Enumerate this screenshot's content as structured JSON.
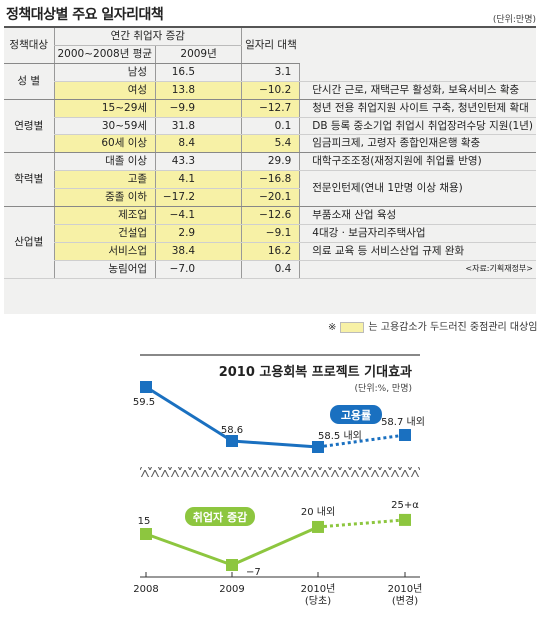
{
  "header": {
    "title": "정책대상별 주요 일자리대책",
    "unit": "(단위:만명)"
  },
  "table": {
    "col_policy_target": "정책대상",
    "col_annual_change": "연간 취업자 증감",
    "col_avg": "2000~2008년 평균",
    "col_2009": "2009년",
    "col_measures": "일자리 대책",
    "rows": [
      {
        "group": "성 별",
        "sub": "남성",
        "avg": "16.5",
        "y2009": "3.1",
        "policy": "",
        "hl": false
      },
      {
        "group": "",
        "sub": "여성",
        "avg": "13.8",
        "y2009": "−10.2",
        "policy": "단시간 근로, 재택근무 활성화, 보육서비스 확충",
        "hl": true
      },
      {
        "group": "연령별",
        "sub": "15~29세",
        "avg": "−9.9",
        "y2009": "−12.7",
        "policy": "청년 전용 취업지원 사이트 구축, 청년인턴제 확대",
        "hl": true
      },
      {
        "group": "",
        "sub": "30~59세",
        "avg": "31.8",
        "y2009": "0.1",
        "policy": "DB 등록 중소기업 취업시 취업장려수당 지원(1년)",
        "hl": false
      },
      {
        "group": "",
        "sub": "60세 이상",
        "avg": "8.4",
        "y2009": "5.4",
        "policy": "임금피크제, 고령자 종합인재은행 확충",
        "hl": true
      },
      {
        "group": "학력별",
        "sub": "대졸 이상",
        "avg": "43.3",
        "y2009": "29.9",
        "policy": "대학구조조정(재정지원에 취업률 반영)",
        "hl": false
      },
      {
        "group": "",
        "sub": "고졸",
        "avg": "4.1",
        "y2009": "−16.8",
        "policy": "전문인턴제(연내 1만명 이상 채용)",
        "hl": true
      },
      {
        "group": "",
        "sub": "중졸 이하",
        "avg": "−17.2",
        "y2009": "−20.1",
        "policy": "",
        "hl": true
      },
      {
        "group": "산업별",
        "sub": "제조업",
        "avg": "−4.1",
        "y2009": "−12.6",
        "policy": "부품소재 산업 육성",
        "hl": true
      },
      {
        "group": "",
        "sub": "건설업",
        "avg": "2.9",
        "y2009": "−9.1",
        "policy": "4대강 · 보금자리주택사업",
        "hl": true
      },
      {
        "group": "",
        "sub": "서비스업",
        "avg": "38.4",
        "y2009": "16.2",
        "policy": "의료 교육 등 서비스산업 규제 완화",
        "hl": true
      },
      {
        "group": "",
        "sub": "농림어업",
        "avg": "−7.0",
        "y2009": "0.4",
        "policy": "",
        "hl": false
      }
    ],
    "source": "<자료:기획재정부>",
    "legend_prefix": "※",
    "legend_text": "는 고용감소가 두드러진 중점관리 대상임"
  },
  "chart_data": {
    "type": "line",
    "title": "2010 고용회복 프로젝트 기대효과",
    "unit": "(단위:%, 만명)",
    "categories": [
      "2008",
      "2009",
      "2010년\n(당초)",
      "2010년\n(변경)"
    ],
    "series": [
      {
        "name": "고용률",
        "values": [
          59.5,
          58.6,
          58.5,
          58.7
        ],
        "labels": [
          "59.5",
          "58.6",
          "58.5 내외",
          "58.7 내외"
        ],
        "color": "#1a70c0",
        "forecast_from": 2
      },
      {
        "name": "취업자 증감",
        "values": [
          15,
          -7,
          20,
          25
        ],
        "labels": [
          "15",
          "−7",
          "20 내외",
          "25+α"
        ],
        "color": "#8dc63f",
        "forecast_from": 2
      }
    ]
  }
}
